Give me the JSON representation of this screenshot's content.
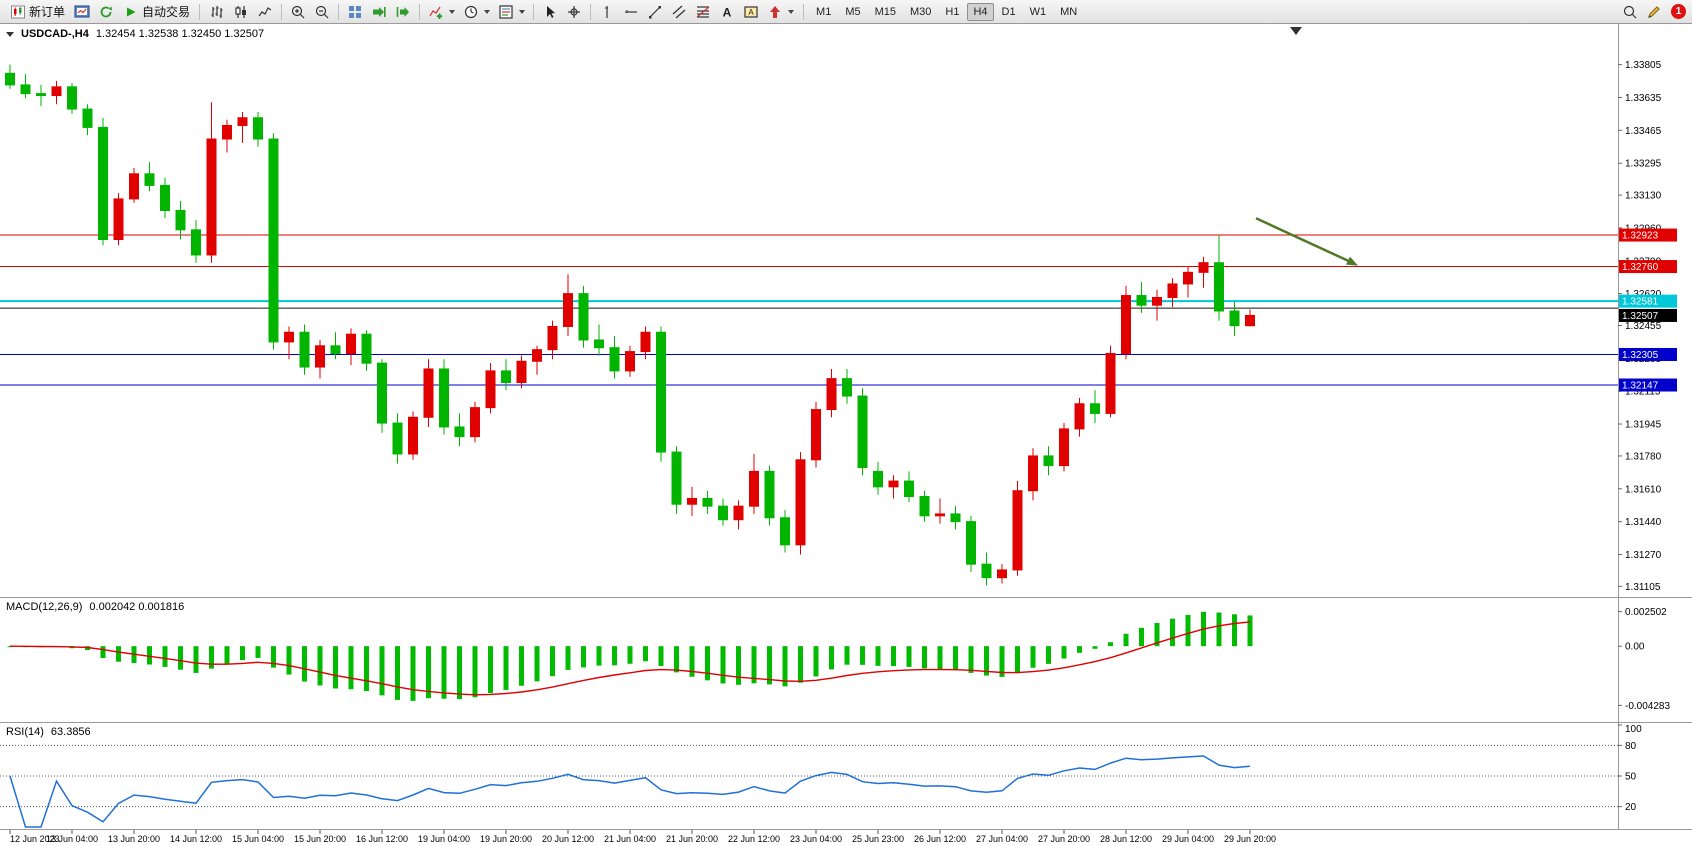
{
  "toolbar": {
    "new_order_label": "新订单",
    "autotrading_label": "自动交易",
    "pre_icons": [
      "charts",
      "refresh"
    ],
    "icon_groups": [
      [
        "bar-chart",
        "candlestick-chart",
        "line-chart"
      ],
      [
        "zoom-in",
        "zoom-out"
      ],
      [
        "tile-windows",
        "auto-scroll",
        "chart-shift"
      ],
      [
        "indicators",
        "periods",
        "templates"
      ],
      [
        "cursor",
        "crosshair"
      ],
      [
        "vertical-line",
        "horizontal-line",
        "trendline",
        "channel",
        "fibonacci",
        "text",
        "text-label",
        "arrows"
      ]
    ],
    "timeframes": [
      "M1",
      "M5",
      "M15",
      "M30",
      "H1",
      "H4",
      "D1",
      "W1",
      "MN"
    ],
    "active_timeframe": "H4",
    "right_icons": [
      "search",
      "edit"
    ],
    "badge_count": "1"
  },
  "chart_data": {
    "type": "candlestick",
    "symbol": "USDCAD",
    "timeframe": "H4",
    "panels": {
      "main_header": {
        "symbol": "USDCAD-,H4",
        "ohlc": "1.32454 1.32538 1.32450 1.32507"
      },
      "macd_header": {
        "name": "MACD(12,26,9)",
        "values": "0.002042 0.001816"
      },
      "rsi_header": {
        "name": "RSI(14)",
        "value": "63.3856"
      }
    },
    "colors": {
      "up": "#e00000",
      "down": "#00b400",
      "macd_hist": "#00bb00",
      "macd_signal": "#e00000",
      "rsi_line": "#2070d8",
      "arrow": "#4e7a27",
      "bid_box": "#000000"
    },
    "price_range": [
      1.3105,
      1.3401
    ],
    "price_ticks": [
      "1.33805",
      "1.33635",
      "1.33465",
      "1.33295",
      "1.33130",
      "1.32960",
      "1.32790",
      "1.32620",
      "1.32455",
      "1.32285",
      "1.32115",
      "1.31945",
      "1.31780",
      "1.31610",
      "1.31440",
      "1.31270",
      "1.31105"
    ],
    "hlines": [
      {
        "price": 1.32923,
        "color": "#e00000",
        "width": 1,
        "label": "1.32923"
      },
      {
        "price": 1.3276,
        "color": "#e00000",
        "width": 1,
        "label": "1.32760"
      },
      {
        "price": 1.32581,
        "color": "#00c8d8",
        "width": 2,
        "label": "1.32581"
      },
      {
        "price": 1.32545,
        "color": "#151515",
        "width": 1,
        "label": null
      },
      {
        "price": 1.32305,
        "color": "#0000cc",
        "width": 1,
        "label": "1.32305"
      },
      {
        "price": 1.32147,
        "color": "#0000cc",
        "width": 1,
        "label": "1.32147"
      }
    ],
    "bid": {
      "price": 1.32507,
      "label": "1.32507"
    },
    "arrow_annotation": {
      "direction": "down-right",
      "color": "#4e7a27",
      "from_price": 1.3301,
      "to_price": 1.32775
    },
    "candles": [
      [
        1.3376,
        1.33805,
        1.3368,
        1.337
      ],
      [
        1.337,
        1.33755,
        1.3363,
        1.33655
      ],
      [
        1.33655,
        1.337,
        1.3359,
        1.33645
      ],
      [
        1.33645,
        1.3372,
        1.336,
        1.3369
      ],
      [
        1.3369,
        1.3371,
        1.3355,
        1.33575
      ],
      [
        1.33575,
        1.336,
        1.3344,
        1.3348
      ],
      [
        1.3348,
        1.3353,
        1.3287,
        1.329
      ],
      [
        1.329,
        1.3314,
        1.3287,
        1.3311
      ],
      [
        1.3311,
        1.3327,
        1.3309,
        1.3324
      ],
      [
        1.3324,
        1.333,
        1.3315,
        1.3318
      ],
      [
        1.3318,
        1.3322,
        1.3301,
        1.3305
      ],
      [
        1.3305,
        1.331,
        1.329,
        1.3295
      ],
      [
        1.3295,
        1.33,
        1.3278,
        1.3282
      ],
      [
        1.3282,
        1.3361,
        1.3278,
        1.3342
      ],
      [
        1.3342,
        1.3352,
        1.3335,
        1.3349
      ],
      [
        1.3349,
        1.3356,
        1.334,
        1.3353
      ],
      [
        1.3353,
        1.3356,
        1.3338,
        1.3342
      ],
      [
        1.3342,
        1.3345,
        1.3233,
        1.3237
      ],
      [
        1.3237,
        1.3245,
        1.3228,
        1.3242
      ],
      [
        1.3242,
        1.3246,
        1.322,
        1.3224
      ],
      [
        1.3224,
        1.3238,
        1.3218,
        1.3235
      ],
      [
        1.3235,
        1.3242,
        1.3228,
        1.3231
      ],
      [
        1.3231,
        1.3244,
        1.3225,
        1.3241
      ],
      [
        1.3241,
        1.3243,
        1.3222,
        1.3226
      ],
      [
        1.3226,
        1.3228,
        1.319,
        1.3195
      ],
      [
        1.3195,
        1.32,
        1.3174,
        1.3179
      ],
      [
        1.3179,
        1.3201,
        1.3176,
        1.3198
      ],
      [
        1.3198,
        1.3228,
        1.3193,
        1.3223
      ],
      [
        1.3223,
        1.3228,
        1.3189,
        1.3193
      ],
      [
        1.3193,
        1.32,
        1.3183,
        1.3188
      ],
      [
        1.3188,
        1.3206,
        1.3185,
        1.3203
      ],
      [
        1.3203,
        1.3226,
        1.32,
        1.3222
      ],
      [
        1.3222,
        1.3228,
        1.3212,
        1.3216
      ],
      [
        1.3216,
        1.323,
        1.3213,
        1.3227
      ],
      [
        1.3227,
        1.3235,
        1.322,
        1.3233
      ],
      [
        1.3233,
        1.3248,
        1.3228,
        1.3245
      ],
      [
        1.3245,
        1.3272,
        1.324,
        1.3262
      ],
      [
        1.3262,
        1.3266,
        1.3234,
        1.3238
      ],
      [
        1.3238,
        1.3246,
        1.323,
        1.3234
      ],
      [
        1.3234,
        1.324,
        1.3218,
        1.3222
      ],
      [
        1.3222,
        1.3235,
        1.3219,
        1.3232
      ],
      [
        1.3232,
        1.3245,
        1.3228,
        1.3242
      ],
      [
        1.3242,
        1.3245,
        1.3175,
        1.318
      ],
      [
        1.318,
        1.3183,
        1.3148,
        1.3153
      ],
      [
        1.3153,
        1.3162,
        1.3147,
        1.3156
      ],
      [
        1.3156,
        1.316,
        1.3148,
        1.3152
      ],
      [
        1.3152,
        1.3156,
        1.3142,
        1.3145
      ],
      [
        1.3145,
        1.3155,
        1.314,
        1.3152
      ],
      [
        1.3152,
        1.3179,
        1.3148,
        1.317
      ],
      [
        1.317,
        1.3173,
        1.3142,
        1.3146
      ],
      [
        1.3146,
        1.315,
        1.3128,
        1.3132
      ],
      [
        1.3132,
        1.318,
        1.3127,
        1.3176
      ],
      [
        1.3176,
        1.3206,
        1.3172,
        1.3202
      ],
      [
        1.3202,
        1.3223,
        1.3198,
        1.3218
      ],
      [
        1.3218,
        1.3223,
        1.3205,
        1.3209
      ],
      [
        1.3209,
        1.3213,
        1.3168,
        1.3172
      ],
      [
        1.317,
        1.3175,
        1.3158,
        1.3162
      ],
      [
        1.3162,
        1.3168,
        1.3156,
        1.3165
      ],
      [
        1.3165,
        1.317,
        1.3154,
        1.3157
      ],
      [
        1.3157,
        1.316,
        1.3144,
        1.3147
      ],
      [
        1.3147,
        1.3156,
        1.3143,
        1.3148
      ],
      [
        1.3148,
        1.3152,
        1.314,
        1.3144
      ],
      [
        1.3144,
        1.3147,
        1.3118,
        1.3122
      ],
      [
        1.3122,
        1.3128,
        1.3111,
        1.3115
      ],
      [
        1.3115,
        1.3122,
        1.3112,
        1.3119
      ],
      [
        1.3119,
        1.3165,
        1.3116,
        1.316
      ],
      [
        1.316,
        1.3182,
        1.3155,
        1.3178
      ],
      [
        1.3178,
        1.3183,
        1.3168,
        1.3173
      ],
      [
        1.3173,
        1.3195,
        1.317,
        1.3192
      ],
      [
        1.3192,
        1.3208,
        1.3188,
        1.3205
      ],
      [
        1.3205,
        1.3212,
        1.3195,
        1.32
      ],
      [
        1.32,
        1.3235,
        1.3198,
        1.3231
      ],
      [
        1.3231,
        1.3266,
        1.3228,
        1.3261
      ],
      [
        1.3261,
        1.3268,
        1.3252,
        1.3256
      ],
      [
        1.3256,
        1.3264,
        1.3248,
        1.326
      ],
      [
        1.326,
        1.327,
        1.3255,
        1.3267
      ],
      [
        1.3267,
        1.3276,
        1.326,
        1.3273
      ],
      [
        1.3273,
        1.3281,
        1.3265,
        1.3278
      ],
      [
        1.3278,
        1.3292,
        1.3248,
        1.3253
      ],
      [
        1.3253,
        1.3258,
        1.324,
        1.32454
      ],
      [
        1.32454,
        1.32538,
        1.3245,
        1.32507
      ]
    ],
    "time_labels": [
      "12 Jun 2023",
      "13 Jun 04:00",
      "13 Jun 20:00",
      "14 Jun 12:00",
      "15 Jun 04:00",
      "15 Jun 20:00",
      "16 Jun 12:00",
      "19 Jun 04:00",
      "19 Jun 20:00",
      "20 Jun 12:00",
      "21 Jun 04:00",
      "21 Jun 20:00",
      "22 Jun 12:00",
      "23 Jun 04:00",
      "25 Jun 23:00",
      "26 Jun 12:00",
      "27 Jun 04:00",
      "27 Jun 20:00",
      "28 Jun 12:00",
      "29 Jun 04:00",
      "29 Jun 20:00"
    ],
    "label_every": 4,
    "indicators": {
      "macd": {
        "name": "MACD(12,26,9)",
        "fast": 12,
        "slow": 26,
        "signal": 9,
        "current_value": 0.002042,
        "current_signal": 0.001816,
        "range": [
          -0.00505,
          0.00305
        ],
        "ticks": [
          {
            "v": 0.002502,
            "t": "0.002502"
          },
          {
            "v": 0,
            "t": "0.00"
          },
          {
            "v": -0.004283,
            "t": "-0.004283"
          }
        ]
      },
      "rsi": {
        "name": "RSI(14)",
        "period": 14,
        "current_value": 63.3856,
        "levels": [
          80,
          50,
          20
        ],
        "axis_labels": [
          {
            "v": 100,
            "t": "100"
          },
          {
            "v": 80,
            "t": "80"
          },
          {
            "v": 50,
            "t": "50"
          },
          {
            "v": 20,
            "t": "20"
          }
        ]
      }
    }
  }
}
